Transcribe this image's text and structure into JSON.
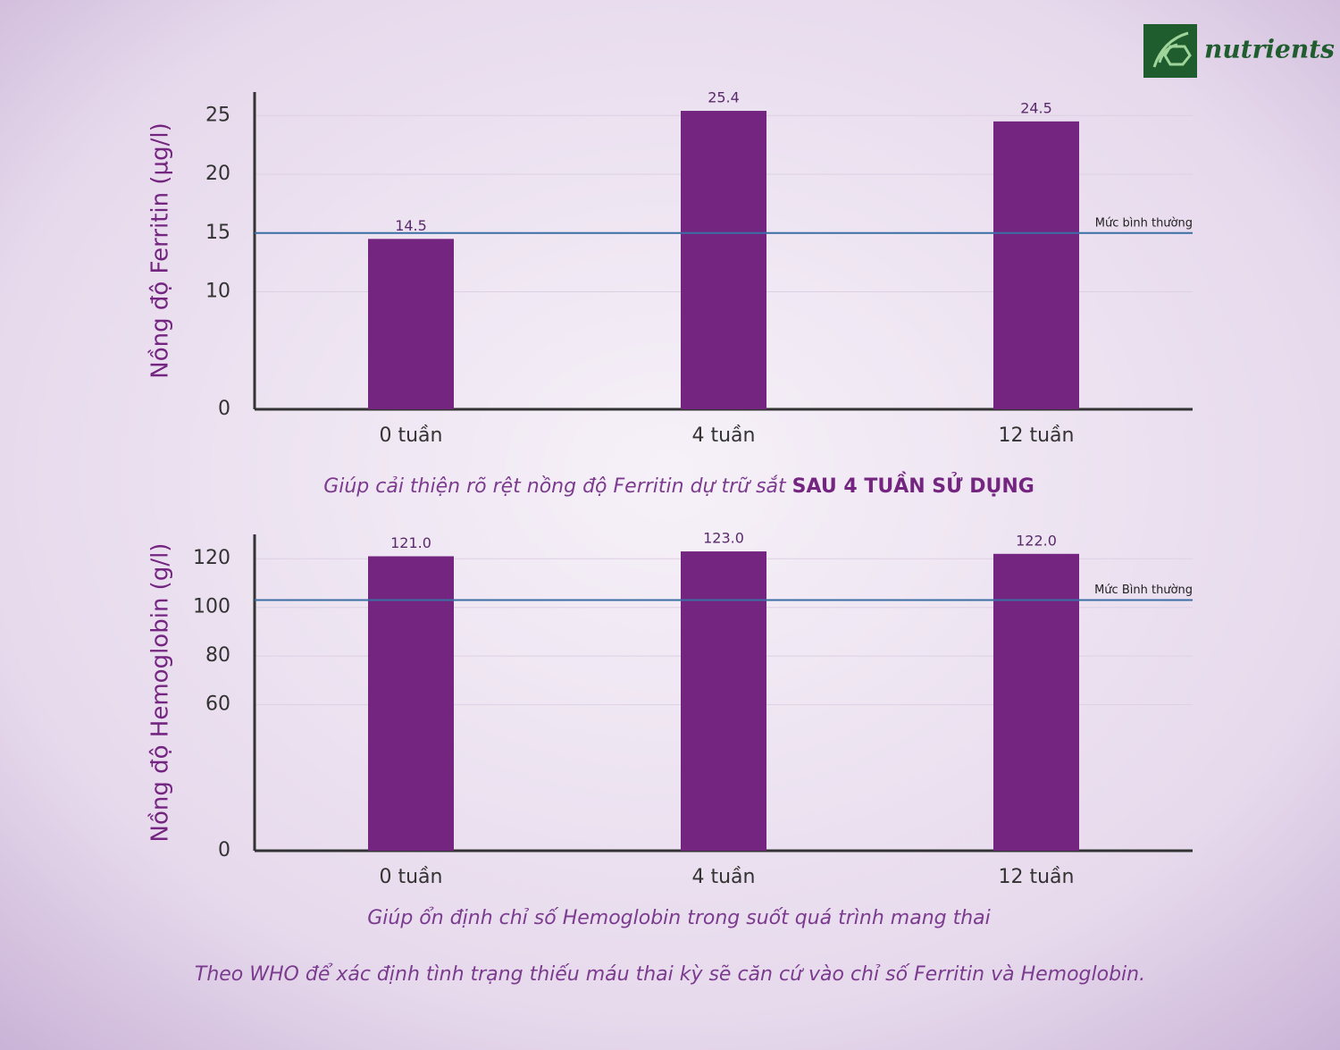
{
  "logo": "nutrients",
  "chart_data": [
    {
      "type": "bar",
      "y_label": "Nồng độ Ferritin (µg/l)",
      "categories": [
        "0 tuần",
        "4 tuần",
        "12 tuần"
      ],
      "values": [
        14.5,
        25.4,
        24.5
      ],
      "color": "#732580",
      "ylim": [
        0,
        27
      ],
      "yticks": [
        0,
        10,
        15,
        20,
        25
      ],
      "grid": true,
      "reference_line": {
        "value": 15,
        "label": "Mức bình thường",
        "color": "#3a6ea5"
      },
      "caption": "Giúp cải thiện rõ rệt nồng độ Ferritin dự trữ sắt ",
      "caption_emphasis": "SAU 4 TUẦN SỬ DỤNG"
    },
    {
      "type": "bar",
      "y_label": "Nồng độ Hemoglobin (g/l)",
      "categories": [
        "0 tuần",
        "4 tuần",
        "12 tuần"
      ],
      "values": [
        121,
        123,
        122
      ],
      "value_labels": [
        "121.0",
        "123.0",
        "122.0"
      ],
      "color": "#732580",
      "ylim": [
        0,
        130
      ],
      "yticks": [
        0,
        60,
        80,
        100,
        120
      ],
      "grid": true,
      "reference_line": {
        "value": 103,
        "label": "Mức Bình thường",
        "color": "#3a6ea5"
      },
      "caption": "Giúp ổn định chỉ số Hemoglobin trong suốt quá trình mang thai"
    }
  ],
  "footer": "Theo WHO để xác định tình trạng thiếu máu thai kỳ sẽ căn cứ vào chỉ số Ferritin và Hemoglobin."
}
